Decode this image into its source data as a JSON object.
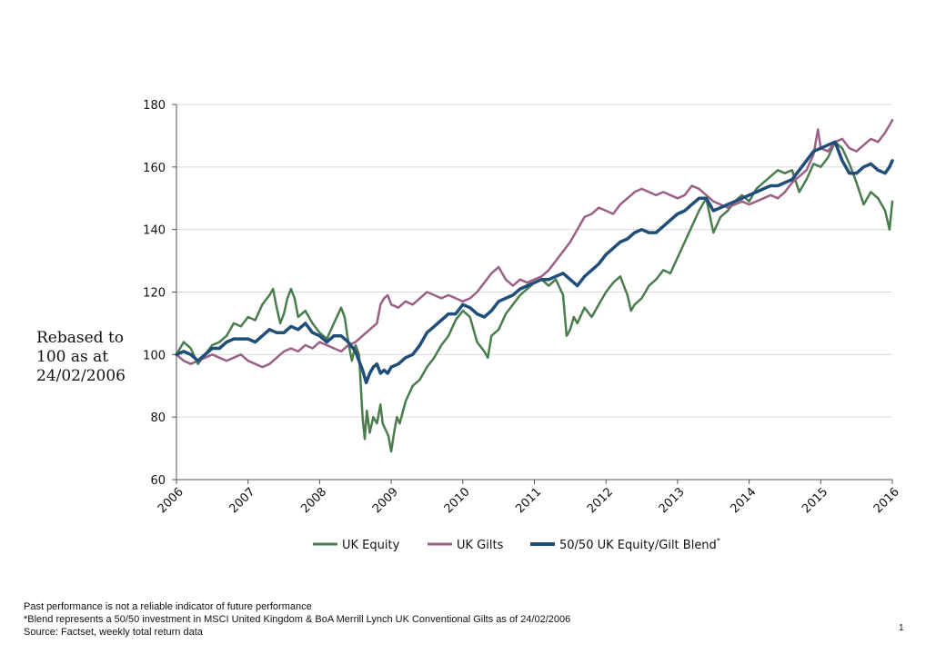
{
  "chart_data": {
    "type": "line",
    "title": "",
    "ylabel": "Rebased to\n100 as at\n24/02/2006",
    "xlabel": "",
    "x_range": [
      2006,
      2016
    ],
    "ylim": [
      60,
      180
    ],
    "x_ticks": [
      "2006",
      "2007",
      "2008",
      "2009",
      "2010",
      "2011",
      "2012",
      "2013",
      "2014",
      "2015",
      "2016"
    ],
    "y_ticks": [
      "60",
      "80",
      "100",
      "120",
      "140",
      "160",
      "180"
    ],
    "grid": "horizontal",
    "legend_position": "bottom",
    "series": [
      {
        "name": "UK Equity",
        "superscript": "",
        "color": "#4a7c4e",
        "x": [
          2006.0,
          2006.1,
          2006.2,
          2006.3,
          2006.4,
          2006.5,
          2006.6,
          2006.7,
          2006.8,
          2006.9,
          2007.0,
          2007.1,
          2007.2,
          2007.3,
          2007.35,
          2007.4,
          2007.45,
          2007.5,
          2007.55,
          2007.6,
          2007.65,
          2007.7,
          2007.8,
          2007.9,
          2008.0,
          2008.1,
          2008.2,
          2008.3,
          2008.35,
          2008.4,
          2008.45,
          2008.5,
          2008.55,
          2008.6,
          2008.63,
          2008.66,
          2008.7,
          2008.75,
          2008.8,
          2008.85,
          2008.88,
          2008.92,
          2008.96,
          2009.0,
          2009.04,
          2009.08,
          2009.12,
          2009.2,
          2009.3,
          2009.4,
          2009.5,
          2009.6,
          2009.7,
          2009.8,
          2009.9,
          2010.0,
          2010.1,
          2010.2,
          2010.3,
          2010.35,
          2010.4,
          2010.5,
          2010.6,
          2010.7,
          2010.8,
          2010.9,
          2011.0,
          2011.1,
          2011.2,
          2011.3,
          2011.4,
          2011.45,
          2011.5,
          2011.55,
          2011.6,
          2011.7,
          2011.8,
          2011.9,
          2012.0,
          2012.1,
          2012.2,
          2012.3,
          2012.35,
          2012.4,
          2012.5,
          2012.6,
          2012.7,
          2012.8,
          2012.9,
          2013.0,
          2013.1,
          2013.2,
          2013.3,
          2013.4,
          2013.5,
          2013.6,
          2013.7,
          2013.8,
          2013.9,
          2014.0,
          2014.1,
          2014.2,
          2014.3,
          2014.4,
          2014.5,
          2014.6,
          2014.7,
          2014.8,
          2014.9,
          2015.0,
          2015.1,
          2015.2,
          2015.3,
          2015.4,
          2015.5,
          2015.6,
          2015.7,
          2015.8,
          2015.9,
          2015.96,
          2016.0
        ],
        "values": [
          100,
          104,
          102,
          97,
          100,
          103,
          104,
          106,
          110,
          109,
          112,
          111,
          116,
          119,
          121,
          115,
          110,
          113,
          118,
          121,
          118,
          112,
          114,
          110,
          107,
          105,
          110,
          115,
          112,
          104,
          98,
          103,
          100,
          80,
          73,
          82,
          75,
          80,
          78,
          84,
          78,
          76,
          74,
          69,
          75,
          80,
          78,
          85,
          90,
          92,
          96,
          99,
          103,
          106,
          111,
          114,
          112,
          104,
          101,
          99,
          106,
          108,
          113,
          116,
          119,
          121,
          123,
          124,
          122,
          124,
          119,
          106,
          108,
          112,
          110,
          115,
          112,
          116,
          120,
          123,
          125,
          119,
          114,
          116,
          118,
          122,
          124,
          127,
          126,
          131,
          136,
          141,
          146,
          150,
          139,
          144,
          146,
          149,
          151,
          149,
          153,
          155,
          157,
          159,
          158,
          159,
          152,
          156,
          161,
          160,
          163,
          168,
          166,
          161,
          155,
          148,
          152,
          150,
          146,
          140,
          149
        ]
      },
      {
        "name": "UK Gilts",
        "superscript": "",
        "color": "#9b6085",
        "x": [
          2006.0,
          2006.1,
          2006.2,
          2006.3,
          2006.4,
          2006.5,
          2006.6,
          2006.7,
          2006.8,
          2006.9,
          2007.0,
          2007.1,
          2007.2,
          2007.3,
          2007.4,
          2007.5,
          2007.6,
          2007.7,
          2007.8,
          2007.9,
          2008.0,
          2008.1,
          2008.2,
          2008.3,
          2008.4,
          2008.5,
          2008.6,
          2008.7,
          2008.8,
          2008.85,
          2008.9,
          2008.95,
          2009.0,
          2009.1,
          2009.2,
          2009.3,
          2009.4,
          2009.5,
          2009.6,
          2009.7,
          2009.8,
          2009.9,
          2010.0,
          2010.1,
          2010.2,
          2010.3,
          2010.4,
          2010.5,
          2010.6,
          2010.7,
          2010.8,
          2010.9,
          2011.0,
          2011.1,
          2011.2,
          2011.3,
          2011.4,
          2011.5,
          2011.6,
          2011.7,
          2011.8,
          2011.9,
          2012.0,
          2012.1,
          2012.2,
          2012.3,
          2012.4,
          2012.5,
          2012.6,
          2012.7,
          2012.8,
          2012.9,
          2013.0,
          2013.1,
          2013.2,
          2013.3,
          2013.4,
          2013.5,
          2013.6,
          2013.7,
          2013.8,
          2013.9,
          2014.0,
          2014.1,
          2014.2,
          2014.3,
          2014.4,
          2014.5,
          2014.6,
          2014.7,
          2014.8,
          2014.9,
          2014.96,
          2015.0,
          2015.1,
          2015.2,
          2015.3,
          2015.4,
          2015.5,
          2015.6,
          2015.7,
          2015.8,
          2015.9,
          2016.0
        ],
        "values": [
          100,
          98,
          97,
          98,
          99,
          100,
          99,
          98,
          99,
          100,
          98,
          97,
          96,
          97,
          99,
          101,
          102,
          101,
          103,
          102,
          104,
          103,
          102,
          101,
          103,
          104,
          106,
          108,
          110,
          116,
          118,
          119,
          116,
          115,
          117,
          116,
          118,
          120,
          119,
          118,
          119,
          118,
          117,
          118,
          120,
          123,
          126,
          128,
          124,
          122,
          124,
          123,
          124,
          125,
          127,
          130,
          133,
          136,
          140,
          144,
          145,
          147,
          146,
          145,
          148,
          150,
          152,
          153,
          152,
          151,
          152,
          151,
          150,
          151,
          154,
          153,
          151,
          149,
          148,
          147,
          148,
          149,
          148,
          149,
          150,
          151,
          150,
          152,
          155,
          157,
          159,
          164,
          172,
          166,
          165,
          168,
          169,
          166,
          165,
          167,
          169,
          168,
          171,
          175
        ]
      },
      {
        "name": "50/50 UK Equity/Gilt Blend",
        "superscript": "*",
        "color": "#1f4e79",
        "x": [
          2006.0,
          2006.1,
          2006.2,
          2006.3,
          2006.4,
          2006.5,
          2006.6,
          2006.7,
          2006.8,
          2006.9,
          2007.0,
          2007.1,
          2007.2,
          2007.3,
          2007.4,
          2007.5,
          2007.6,
          2007.7,
          2007.8,
          2007.9,
          2008.0,
          2008.1,
          2008.2,
          2008.3,
          2008.4,
          2008.5,
          2008.55,
          2008.6,
          2008.65,
          2008.7,
          2008.75,
          2008.8,
          2008.85,
          2008.9,
          2008.95,
          2009.0,
          2009.1,
          2009.2,
          2009.3,
          2009.4,
          2009.5,
          2009.6,
          2009.7,
          2009.8,
          2009.9,
          2010.0,
          2010.1,
          2010.2,
          2010.3,
          2010.4,
          2010.5,
          2010.6,
          2010.7,
          2010.8,
          2010.9,
          2011.0,
          2011.1,
          2011.2,
          2011.3,
          2011.4,
          2011.5,
          2011.6,
          2011.7,
          2011.8,
          2011.9,
          2012.0,
          2012.1,
          2012.2,
          2012.3,
          2012.4,
          2012.5,
          2012.6,
          2012.7,
          2012.8,
          2012.9,
          2013.0,
          2013.1,
          2013.2,
          2013.3,
          2013.4,
          2013.5,
          2013.6,
          2013.7,
          2013.8,
          2013.9,
          2014.0,
          2014.1,
          2014.2,
          2014.3,
          2014.4,
          2014.5,
          2014.6,
          2014.7,
          2014.8,
          2014.9,
          2015.0,
          2015.1,
          2015.2,
          2015.3,
          2015.4,
          2015.5,
          2015.6,
          2015.7,
          2015.8,
          2015.9,
          2015.96,
          2016.0
        ],
        "values": [
          100,
          101,
          100,
          98,
          100,
          102,
          102,
          104,
          105,
          105,
          105,
          104,
          106,
          108,
          107,
          107,
          109,
          108,
          110,
          107,
          106,
          104,
          106,
          106,
          104,
          101,
          98,
          95,
          91,
          94,
          96,
          97,
          94,
          95,
          94,
          96,
          97,
          99,
          100,
          103,
          107,
          109,
          111,
          113,
          113,
          116,
          115,
          113,
          112,
          114,
          117,
          118,
          119,
          121,
          122,
          123,
          124,
          124,
          125,
          126,
          124,
          122,
          125,
          127,
          129,
          132,
          134,
          136,
          137,
          139,
          140,
          139,
          139,
          141,
          143,
          145,
          146,
          148,
          150,
          150,
          146,
          147,
          148,
          149,
          150,
          151,
          152,
          153,
          154,
          154,
          155,
          156,
          159,
          162,
          165,
          166,
          167,
          168,
          162,
          158,
          158,
          160,
          161,
          159,
          158,
          160,
          162
        ]
      }
    ]
  },
  "footnotes": {
    "line1": "Past performance is not a reliable indicator of future performance",
    "line2": "*Blend represents  a  50/50 investment in MSCI United Kingdom & BoA Merrill Lynch UK Conventional Gilts as of 24/02/2006",
    "line3": "Source: Factset, weekly total return data"
  },
  "page_number": "1"
}
